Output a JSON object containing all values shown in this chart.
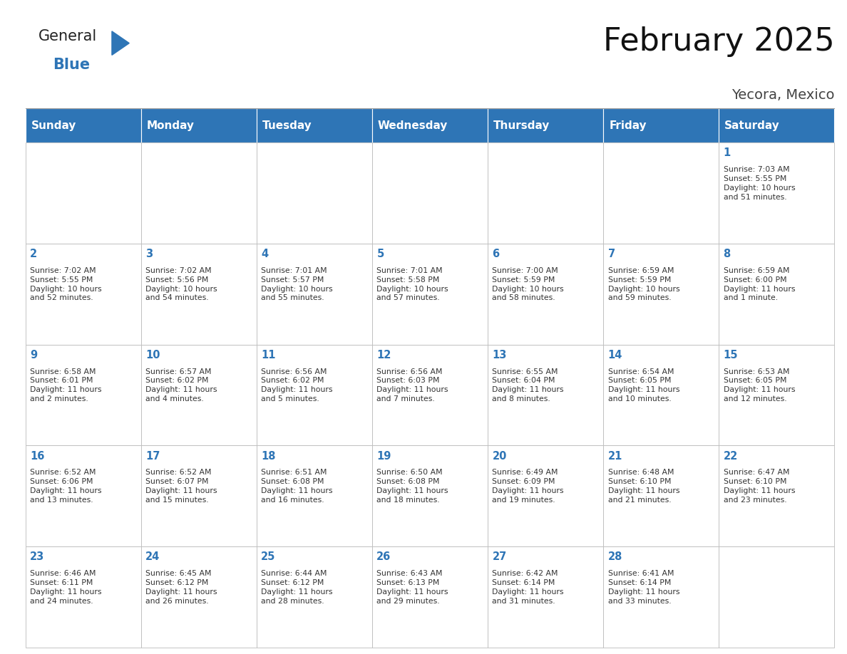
{
  "title": "February 2025",
  "subtitle": "Yecora, Mexico",
  "days_of_week": [
    "Sunday",
    "Monday",
    "Tuesday",
    "Wednesday",
    "Thursday",
    "Friday",
    "Saturday"
  ],
  "header_bg": "#2E75B6",
  "header_text": "#FFFFFF",
  "cell_bg": "#FFFFFF",
  "cell_border": "#BBBBBB",
  "day_number_color": "#2E75B6",
  "info_text_color": "#333333",
  "title_color": "#111111",
  "subtitle_color": "#444444",
  "background_color": "#FFFFFF",
  "logo_general_color": "#222222",
  "logo_blue_color": "#2E75B6",
  "logo_triangle_color": "#2E75B6",
  "calendar_data": [
    [
      null,
      null,
      null,
      null,
      null,
      null,
      {
        "day": 1,
        "sunrise": "7:03 AM",
        "sunset": "5:55 PM",
        "daylight": "10 hours\nand 51 minutes."
      }
    ],
    [
      {
        "day": 2,
        "sunrise": "7:02 AM",
        "sunset": "5:55 PM",
        "daylight": "10 hours\nand 52 minutes."
      },
      {
        "day": 3,
        "sunrise": "7:02 AM",
        "sunset": "5:56 PM",
        "daylight": "10 hours\nand 54 minutes."
      },
      {
        "day": 4,
        "sunrise": "7:01 AM",
        "sunset": "5:57 PM",
        "daylight": "10 hours\nand 55 minutes."
      },
      {
        "day": 5,
        "sunrise": "7:01 AM",
        "sunset": "5:58 PM",
        "daylight": "10 hours\nand 57 minutes."
      },
      {
        "day": 6,
        "sunrise": "7:00 AM",
        "sunset": "5:59 PM",
        "daylight": "10 hours\nand 58 minutes."
      },
      {
        "day": 7,
        "sunrise": "6:59 AM",
        "sunset": "5:59 PM",
        "daylight": "10 hours\nand 59 minutes."
      },
      {
        "day": 8,
        "sunrise": "6:59 AM",
        "sunset": "6:00 PM",
        "daylight": "11 hours\nand 1 minute."
      }
    ],
    [
      {
        "day": 9,
        "sunrise": "6:58 AM",
        "sunset": "6:01 PM",
        "daylight": "11 hours\nand 2 minutes."
      },
      {
        "day": 10,
        "sunrise": "6:57 AM",
        "sunset": "6:02 PM",
        "daylight": "11 hours\nand 4 minutes."
      },
      {
        "day": 11,
        "sunrise": "6:56 AM",
        "sunset": "6:02 PM",
        "daylight": "11 hours\nand 5 minutes."
      },
      {
        "day": 12,
        "sunrise": "6:56 AM",
        "sunset": "6:03 PM",
        "daylight": "11 hours\nand 7 minutes."
      },
      {
        "day": 13,
        "sunrise": "6:55 AM",
        "sunset": "6:04 PM",
        "daylight": "11 hours\nand 8 minutes."
      },
      {
        "day": 14,
        "sunrise": "6:54 AM",
        "sunset": "6:05 PM",
        "daylight": "11 hours\nand 10 minutes."
      },
      {
        "day": 15,
        "sunrise": "6:53 AM",
        "sunset": "6:05 PM",
        "daylight": "11 hours\nand 12 minutes."
      }
    ],
    [
      {
        "day": 16,
        "sunrise": "6:52 AM",
        "sunset": "6:06 PM",
        "daylight": "11 hours\nand 13 minutes."
      },
      {
        "day": 17,
        "sunrise": "6:52 AM",
        "sunset": "6:07 PM",
        "daylight": "11 hours\nand 15 minutes."
      },
      {
        "day": 18,
        "sunrise": "6:51 AM",
        "sunset": "6:08 PM",
        "daylight": "11 hours\nand 16 minutes."
      },
      {
        "day": 19,
        "sunrise": "6:50 AM",
        "sunset": "6:08 PM",
        "daylight": "11 hours\nand 18 minutes."
      },
      {
        "day": 20,
        "sunrise": "6:49 AM",
        "sunset": "6:09 PM",
        "daylight": "11 hours\nand 19 minutes."
      },
      {
        "day": 21,
        "sunrise": "6:48 AM",
        "sunset": "6:10 PM",
        "daylight": "11 hours\nand 21 minutes."
      },
      {
        "day": 22,
        "sunrise": "6:47 AM",
        "sunset": "6:10 PM",
        "daylight": "11 hours\nand 23 minutes."
      }
    ],
    [
      {
        "day": 23,
        "sunrise": "6:46 AM",
        "sunset": "6:11 PM",
        "daylight": "11 hours\nand 24 minutes."
      },
      {
        "day": 24,
        "sunrise": "6:45 AM",
        "sunset": "6:12 PM",
        "daylight": "11 hours\nand 26 minutes."
      },
      {
        "day": 25,
        "sunrise": "6:44 AM",
        "sunset": "6:12 PM",
        "daylight": "11 hours\nand 28 minutes."
      },
      {
        "day": 26,
        "sunrise": "6:43 AM",
        "sunset": "6:13 PM",
        "daylight": "11 hours\nand 29 minutes."
      },
      {
        "day": 27,
        "sunrise": "6:42 AM",
        "sunset": "6:14 PM",
        "daylight": "11 hours\nand 31 minutes."
      },
      {
        "day": 28,
        "sunrise": "6:41 AM",
        "sunset": "6:14 PM",
        "daylight": "11 hours\nand 33 minutes."
      },
      null
    ]
  ]
}
